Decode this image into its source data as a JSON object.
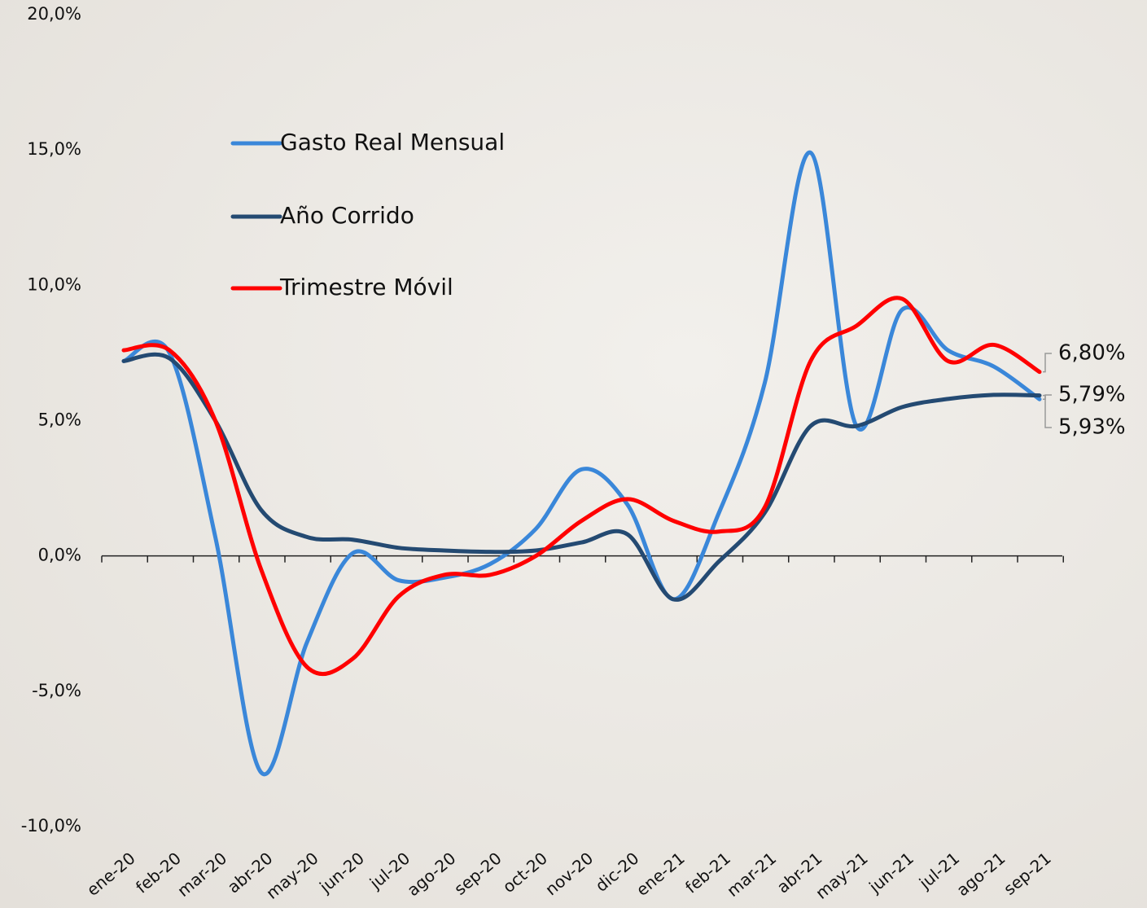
{
  "chart_data": {
    "type": "line",
    "categories": [
      "ene-20",
      "feb-20",
      "mar-20",
      "abr-20",
      "may-20",
      "jun-20",
      "jul-20",
      "ago-20",
      "sep-20",
      "oct-20",
      "nov-20",
      "dic-20",
      "ene-21",
      "feb-21",
      "mar-21",
      "abr-21",
      "may-21",
      "jun-21",
      "jul-21",
      "ago-21",
      "sep-21"
    ],
    "series": [
      {
        "name": "Gasto Real Mensual",
        "color": "#3a87d9",
        "values": [
          7.2,
          7.5,
          0.7,
          -8.0,
          -3.2,
          0.1,
          -0.9,
          -0.8,
          -0.3,
          1.0,
          3.2,
          1.9,
          -1.6,
          1.6,
          6.4,
          14.9,
          4.8,
          9.1,
          7.6,
          7.0,
          5.79
        ],
        "value_labels": [
          null,
          null,
          null,
          null,
          null,
          null,
          null,
          null,
          null,
          null,
          null,
          null,
          null,
          null,
          null,
          null,
          null,
          null,
          null,
          null,
          "5,79%"
        ]
      },
      {
        "name": "Año Corrido",
        "color": "#244a72",
        "values": [
          7.2,
          7.3,
          5.0,
          1.7,
          0.7,
          0.6,
          0.3,
          0.2,
          0.15,
          0.2,
          0.5,
          0.8,
          -1.6,
          -0.2,
          1.6,
          4.8,
          4.8,
          5.5,
          5.8,
          5.95,
          5.93
        ],
        "value_labels": [
          null,
          null,
          null,
          null,
          null,
          null,
          null,
          null,
          null,
          null,
          null,
          null,
          null,
          null,
          null,
          null,
          null,
          null,
          null,
          null,
          "5,93%"
        ]
      },
      {
        "name": "Trimestre Móvil",
        "color": "#ff0000",
        "values": [
          7.6,
          7.6,
          5.0,
          -0.5,
          -4.1,
          -3.8,
          -1.5,
          -0.7,
          -0.7,
          0.0,
          1.3,
          2.1,
          1.3,
          0.9,
          1.8,
          7.2,
          8.5,
          9.5,
          7.2,
          7.8,
          6.8
        ],
        "value_labels": [
          null,
          null,
          null,
          null,
          null,
          null,
          null,
          null,
          null,
          null,
          null,
          null,
          null,
          null,
          null,
          null,
          null,
          null,
          null,
          null,
          "6,80%"
        ]
      }
    ],
    "ylim": [
      -10,
      20
    ],
    "yticks": [
      {
        "value": -10,
        "label": "-10,0%"
      },
      {
        "value": -5,
        "label": "-5,0%"
      },
      {
        "value": 0,
        "label": "0,0%"
      },
      {
        "value": 5,
        "label": "5,0%"
      },
      {
        "value": 10,
        "label": "10,0%"
      },
      {
        "value": 15,
        "label": "15,0%"
      },
      {
        "value": 20,
        "label": "20,0%"
      }
    ]
  }
}
